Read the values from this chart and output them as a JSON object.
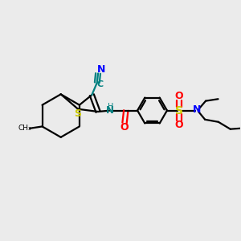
{
  "background_color": "#ebebeb",
  "colors": {
    "bond": "#000000",
    "nitrogen": "#0000ff",
    "oxygen": "#ff0000",
    "sulfur": "#cccc00",
    "cyano_c": "#008080",
    "cyano_n": "#0000ff",
    "nh": "#008080",
    "methyl": "#000000"
  },
  "layout": {
    "xlim": [
      0,
      10
    ],
    "ylim": [
      0,
      10
    ],
    "figsize": [
      3.0,
      3.0
    ],
    "dpi": 100
  }
}
